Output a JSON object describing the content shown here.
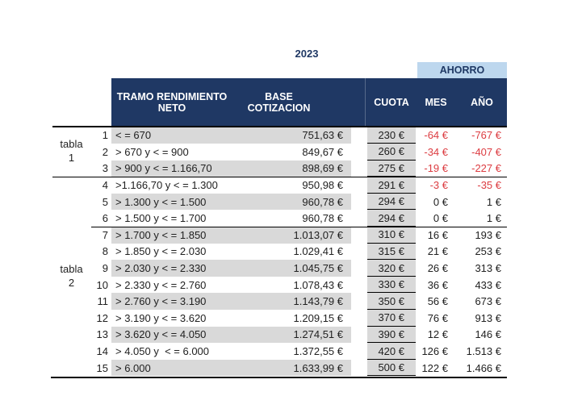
{
  "title": "2023",
  "colors": {
    "navy": "#1f3864",
    "light_blue": "#bdd7ee",
    "row_gray": "#d9d9d9",
    "negative_red": "#dc3c41",
    "text": "#212121"
  },
  "header": {
    "ahorro": "AHORRO",
    "columns": {
      "tramo": "TRAMO RENDIMIENTO NETO",
      "base": "BASE COTIZACION",
      "cuota": "CUOTA",
      "mes": "MES",
      "ano": "AÑO"
    }
  },
  "groups": [
    {
      "label": "tabla 1",
      "rows": "1-3"
    },
    {
      "label": "tabla 2",
      "rows": "4-15"
    }
  ],
  "table": {
    "rows": [
      {
        "num": "1",
        "tramo": "< = 670",
        "base": "751,63 €",
        "cuota": "230 €",
        "mes": "-64 €",
        "ano": "-767 €"
      },
      {
        "num": "2",
        "tramo": "> 670 y < = 900",
        "base": "849,67 €",
        "cuota": "260 €",
        "mes": "-34 €",
        "ano": "-407 €"
      },
      {
        "num": "3",
        "tramo": "> 900 y < = 1.166,70",
        "base": "898,69 €",
        "cuota": "275 €",
        "mes": "-19 €",
        "ano": "-227 €"
      },
      {
        "num": "4",
        "tramo": ">1.166,70 y < = 1.300",
        "base": "950,98 €",
        "cuota": "291 €",
        "mes": "-3 €",
        "ano": "-35 €"
      },
      {
        "num": "5",
        "tramo": "> 1.300 y < = 1.500",
        "base": "960,78 €",
        "cuota": "294 €",
        "mes": "0 €",
        "ano": "1 €"
      },
      {
        "num": "6",
        "tramo": "> 1.500 y < = 1.700",
        "base": "960,78 €",
        "cuota": "294 €",
        "mes": "0 €",
        "ano": "1 €"
      },
      {
        "num": "7",
        "tramo": "> 1.700 y < = 1.850",
        "base": "1.013,07 €",
        "cuota": "310 €",
        "mes": "16 €",
        "ano": "193 €"
      },
      {
        "num": "8",
        "tramo": "> 1.850 y < = 2.030",
        "base": "1.029,41 €",
        "cuota": "315 €",
        "mes": "21 €",
        "ano": "253 €"
      },
      {
        "num": "9",
        "tramo": "> 2.030 y < = 2.330",
        "base": "1.045,75 €",
        "cuota": "320 €",
        "mes": "26 €",
        "ano": "313 €"
      },
      {
        "num": "10",
        "tramo": "> 2.330 y < = 2.760",
        "base": "1.078,43 €",
        "cuota": "330 €",
        "mes": "36 €",
        "ano": "433 €"
      },
      {
        "num": "11",
        "tramo": "> 2.760 y < = 3.190",
        "base": "1.143,79 €",
        "cuota": "350 €",
        "mes": "56 €",
        "ano": "673 €"
      },
      {
        "num": "12",
        "tramo": "> 3.190 y < = 3.620",
        "base": "1.209,15 €",
        "cuota": "370 €",
        "mes": "76 €",
        "ano": "913 €"
      },
      {
        "num": "13",
        "tramo": "> 3.620 y < = 4.050",
        "base": "1.274,51 €",
        "cuota": "390 €",
        "mes": "12 €",
        "ano": "146 €"
      },
      {
        "num": "14",
        "tramo": "> 4.050 y  < = 6.000",
        "base": "1.372,55 €",
        "cuota": "420 €",
        "mes": "126 €",
        "ano": "1.513 €"
      },
      {
        "num": "15",
        "tramo": "> 6.000",
        "base": "1.633,99 €",
        "cuota": "500 €",
        "mes": "122 €",
        "ano": "1.466 €"
      }
    ]
  }
}
